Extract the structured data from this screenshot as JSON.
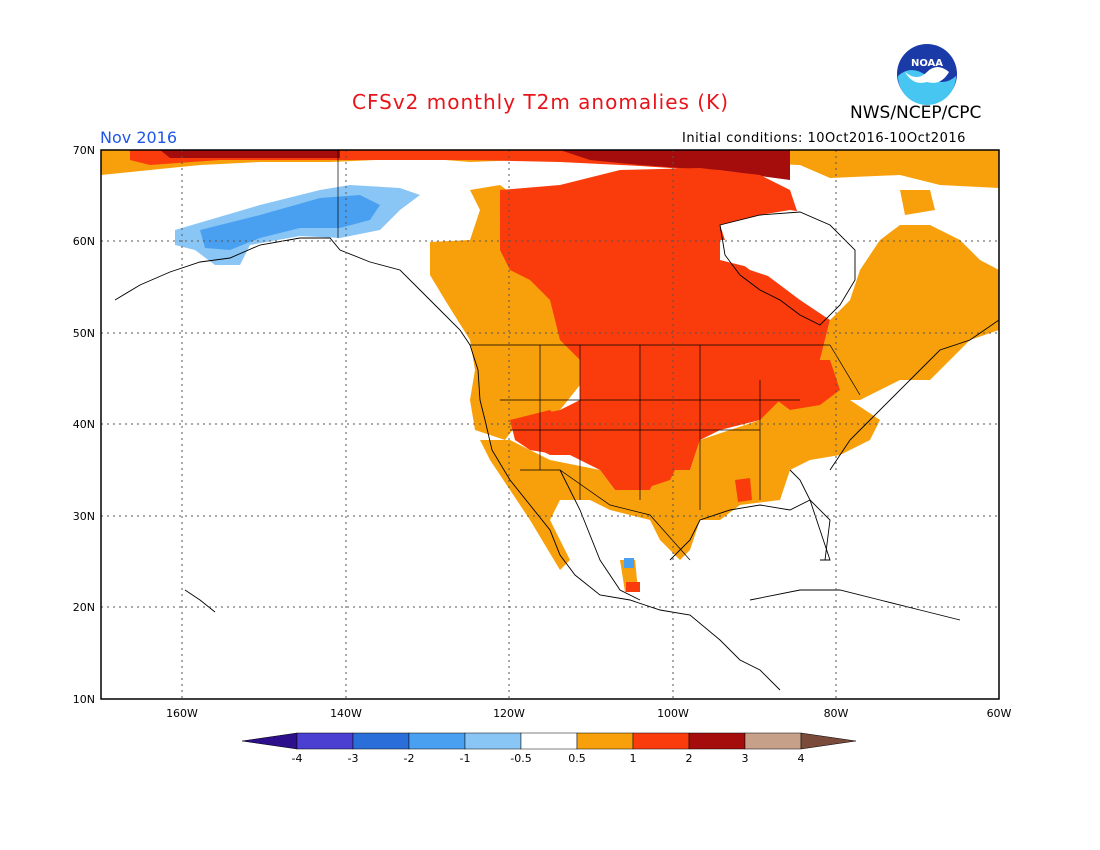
{
  "header": {
    "title": "CFSv2 monthly T2m anomalies (K)",
    "organization": "NWS/NCEP/CPC",
    "logo_text": "NOAA",
    "valid_period": "Nov 2016",
    "initial_conditions": "Initial conditions: 10Oct2016-10Oct2016"
  },
  "map": {
    "region": "North America",
    "lat_range": [
      10,
      70
    ],
    "lon_range": [
      -170,
      -60
    ],
    "lat_ticks": [
      "70N",
      "60N",
      "50N",
      "40N",
      "30N",
      "20N",
      "10N"
    ],
    "lon_ticks": [
      "160W",
      "140W",
      "120W",
      "100W",
      "80W",
      "60W"
    ],
    "gridlines": "dotted"
  },
  "legend": {
    "tick_labels": [
      "-4",
      "-3",
      "-2",
      "-1",
      "-0.5",
      "0.5",
      "1",
      "2",
      "3",
      "4"
    ],
    "bins": [
      {
        "range": "< -4",
        "color": "#2d0f8c"
      },
      {
        "range": "-4 to -3",
        "color": "#4b3fd1"
      },
      {
        "range": "-3 to -2",
        "color": "#2a6fd9"
      },
      {
        "range": "-2 to -1",
        "color": "#4aa0f0"
      },
      {
        "range": "-1 to -0.5",
        "color": "#8ac6f5"
      },
      {
        "range": "-0.5 to 0.5",
        "color": "#ffffff"
      },
      {
        "range": "0.5 to 1",
        "color": "#f7a00b"
      },
      {
        "range": "1 to 2",
        "color": "#fa3c0c"
      },
      {
        "range": "2 to 3",
        "color": "#a50d0d"
      },
      {
        "range": "3 to 4",
        "color": "#c7a08a"
      },
      {
        "range": "> 4",
        "color": "#7a4a3a"
      }
    ]
  },
  "colors": {
    "title": "#e8141b",
    "period": "#1f56e6",
    "warm_light": "#f7a00b",
    "warm_mid": "#fa3c0c",
    "warm_dark": "#a50d0d",
    "cool_light": "#8ac6f5",
    "cool_mid": "#4aa0f0"
  }
}
